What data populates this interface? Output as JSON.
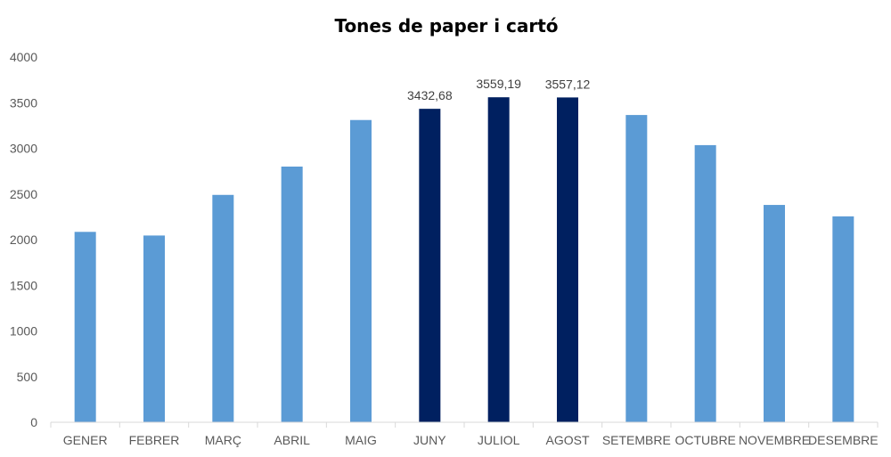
{
  "chart_data": {
    "type": "bar",
    "title": "Tones de paper i cartó",
    "xlabel": "",
    "ylabel": "",
    "ylim": [
      0,
      4000
    ],
    "yticks": [
      0,
      500,
      1000,
      1500,
      2000,
      2500,
      3000,
      3500,
      4000
    ],
    "grid": false,
    "legend": "none",
    "categories": [
      "GENER",
      "FEBRER",
      "MARÇ",
      "ABRIL",
      "MAIG",
      "JUNY",
      "JULIOL",
      "AGOST",
      "SETEMBRE",
      "OCTUBRE",
      "NOVEMBRE",
      "DESEMBRE"
    ],
    "values": [
      2085,
      2045,
      2490,
      2800,
      3310,
      3432.68,
      3559.19,
      3557.12,
      3365,
      3035,
      2380,
      2255
    ],
    "highlighted": [
      false,
      false,
      false,
      false,
      false,
      true,
      true,
      true,
      false,
      false,
      false,
      false
    ],
    "data_labels": [
      "",
      "",
      "",
      "",
      "",
      "3432,68",
      "3559,19",
      "3557,12",
      "",
      "",
      "",
      ""
    ],
    "colors": {
      "bar": "#5b9bd5",
      "highlight": "#002060",
      "axis": "#d9d9d9"
    }
  }
}
